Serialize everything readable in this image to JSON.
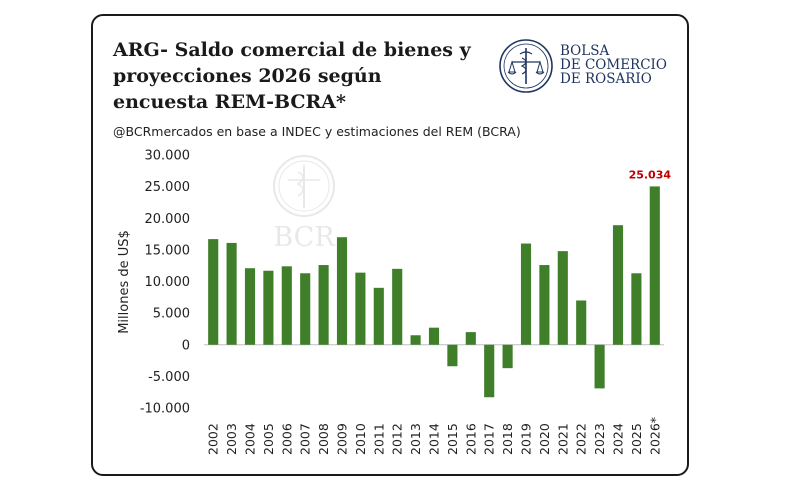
{
  "header": {
    "title": "ARG- Saldo comercial de bienes y proyecciones 2026 según encuesta REM-BCRA*",
    "subtitle": "@BCRmercados en base a INDEC y estimaciones del REM (BCRA)"
  },
  "logo": {
    "line1": "BOLSA",
    "line2": "DE COMERCIO",
    "line3": "DE ROSARIO",
    "icon": "caduceus-scales-seal-icon"
  },
  "watermark": {
    "text": "BCR"
  },
  "colors": {
    "bar": "#3f7f2a",
    "highlight_label": "#c00000",
    "axis_text": "#222222",
    "zero_line": "#bfbfbf"
  },
  "chart_data": {
    "type": "bar",
    "categories": [
      "2002",
      "2003",
      "2004",
      "2005",
      "2006",
      "2007",
      "2008",
      "2009",
      "2010",
      "2011",
      "2012",
      "2013",
      "2014",
      "2015",
      "2016",
      "2017",
      "2018",
      "2019",
      "2020",
      "2021",
      "2022",
      "2023",
      "2024",
      "2025",
      "2026*"
    ],
    "values": [
      16700,
      16100,
      12100,
      11700,
      12400,
      11300,
      12600,
      17000,
      11400,
      9000,
      12000,
      1500,
      2700,
      -3400,
      2000,
      -8300,
      -3700,
      16000,
      12600,
      14800,
      7000,
      -6900,
      18900,
      11300,
      25034
    ],
    "ylabel": "Millones de US$",
    "xlabel": "",
    "ylim": [
      -10000,
      30000
    ],
    "yticks": [
      30000,
      25000,
      20000,
      15000,
      10000,
      5000,
      0,
      -5000,
      -10000
    ],
    "ytick_labels": [
      "30.000",
      "25.000",
      "20.000",
      "15.000",
      "10.000",
      "5.000",
      "0",
      "-5.000",
      "-10.000"
    ],
    "data_labels": [
      {
        "category": "2026*",
        "text": "25.034"
      }
    ],
    "grid": false,
    "legend": "none"
  }
}
